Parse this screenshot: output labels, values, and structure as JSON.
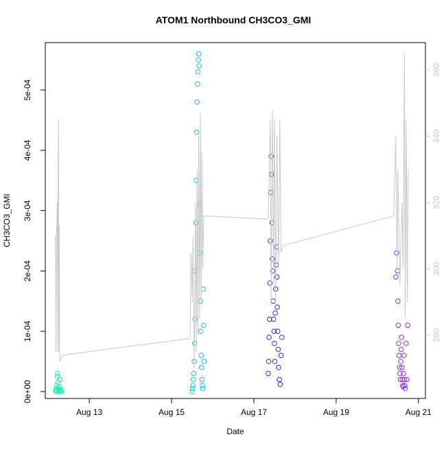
{
  "chart_data": {
    "type": "scatter",
    "title": "ATOM1 Northbound CH3CO3_GMI",
    "xlabel": "Date",
    "ylabel": "CH3CO3_GMI",
    "xlim": [
      11.93,
      21.17
    ],
    "xticks": [
      {
        "value": 13,
        "label": "Aug 13"
      },
      {
        "value": 15,
        "label": "Aug 15"
      },
      {
        "value": 17,
        "label": "Aug 17"
      },
      {
        "value": 19,
        "label": "Aug 19"
      },
      {
        "value": 21,
        "label": "Aug 21"
      }
    ],
    "ylim": [
      -1.14e-05,
      0.0005786
    ],
    "yticks": [
      {
        "value": 0,
        "label": "0e+00"
      },
      {
        "value": 0.0001,
        "label": "1e-04"
      },
      {
        "value": 0.0002,
        "label": "2e-04"
      },
      {
        "value": 0.0003,
        "label": "3e-04"
      },
      {
        "value": 0.0004,
        "label": "4e-04"
      },
      {
        "value": 0.0005,
        "label": "5e-04"
      }
    ],
    "y2lim": [
      260.9,
      368.3
    ],
    "y2ticks": [
      280,
      300,
      320,
      340,
      360
    ],
    "y2_color": "#c8c8c8",
    "series": [
      {
        "color": "#1ee8b0",
        "x": [
          12.18,
          12.19,
          12.2,
          12.21,
          12.22,
          12.23,
          12.24,
          12.25,
          12.26,
          12.27,
          12.28,
          12.29,
          12.3,
          12.31,
          12.33
        ],
        "values": [
          0,
          2e-06,
          5e-06,
          1e-05,
          2.5e-05,
          3e-05,
          1.5e-05,
          5e-06,
          0,
          1e-06,
          8e-06,
          2e-05,
          3e-06,
          1e-06,
          0
        ]
      },
      {
        "color": "#22b8ee",
        "x": [
          15.5,
          15.51,
          15.52,
          15.53,
          15.54,
          15.55,
          15.56,
          15.57,
          15.58,
          15.59,
          15.6,
          15.61,
          15.62,
          15.63,
          15.64,
          15.65,
          15.66,
          15.67,
          15.68,
          15.69,
          15.7,
          15.71,
          15.72,
          15.73,
          15.74,
          15.75,
          15.76,
          15.77,
          15.78,
          15.79
        ],
        "values": [
          0,
          5e-06,
          1e-05,
          2e-05,
          3e-05,
          5e-05,
          8e-05,
          0.00012,
          0.0002,
          0.00028,
          0.00035,
          0.00043,
          0.00048,
          0.00051,
          0.00053,
          0.00055,
          0.00056,
          0.00054,
          0.00031,
          0.00023,
          0.00015,
          0.0001,
          6e-05,
          4e-05,
          2e-05,
          1e-05,
          5e-06,
          0.00017,
          0.00011,
          5e-05
        ]
      },
      {
        "color": "#1f35e0",
        "x": [
          17.35,
          17.36,
          17.37,
          17.38,
          17.39,
          17.4,
          17.41,
          17.42,
          17.43,
          17.44,
          17.45,
          17.46,
          17.47,
          17.48,
          17.49,
          17.5,
          17.51,
          17.52,
          17.53,
          17.54,
          17.55,
          17.56,
          17.57,
          17.58,
          17.59,
          17.6,
          17.62,
          17.64,
          17.66,
          17.68
        ],
        "values": [
          3e-05,
          5e-05,
          9e-05,
          0.00012,
          0.00018,
          0.00025,
          0.00033,
          0.00039,
          0.00036,
          0.00028,
          0.00022,
          0.0002,
          0.00015,
          0.00012,
          0.0001,
          8e-05,
          5e-05,
          0.00013,
          0.00017,
          0.00021,
          0.00024,
          0.00019,
          0.00014,
          0.0001,
          7e-05,
          4e-05,
          2e-05,
          1.2e-05,
          6e-05,
          9e-05
        ]
      },
      {
        "color": "#8a2be8",
        "x": [
          20.45,
          20.47,
          20.49,
          20.5,
          20.51,
          20.52,
          20.53,
          20.54,
          20.55,
          20.56,
          20.57,
          20.58,
          20.59,
          20.6,
          20.61,
          20.62,
          20.63,
          20.64,
          20.65,
          20.66,
          20.67,
          20.68,
          20.7,
          20.72,
          20.74
        ],
        "values": [
          0.00019,
          0.00023,
          0.0002,
          0.00015,
          0.00011,
          8e-05,
          6e-05,
          4e-05,
          3e-05,
          2e-05,
          5e-05,
          7e-05,
          9e-05,
          4e-05,
          2e-05,
          1e-05,
          8e-06,
          3e-05,
          6e-05,
          2e-05,
          1e-05,
          5e-06,
          8e-05,
          2e-05,
          0.00011
        ]
      },
      {
        "color": "#c8c8c8",
        "axis": "y2",
        "line": true,
        "x": [
          12.17,
          12.18,
          12.19,
          12.2,
          12.21,
          12.22,
          12.23,
          12.24,
          12.25,
          12.26,
          12.27,
          12.28,
          12.35,
          15.45,
          15.47,
          15.5,
          15.52,
          15.55,
          15.58,
          15.6,
          15.62,
          15.64,
          15.66,
          15.68,
          15.7,
          15.72,
          15.74,
          15.76,
          15.78,
          17.35,
          17.4,
          17.42,
          17.45,
          17.48,
          17.5,
          17.53,
          17.56,
          17.6,
          17.63,
          17.66,
          17.7,
          20.4,
          20.45,
          20.48,
          20.5,
          20.55,
          20.6,
          20.63,
          20.66,
          20.68,
          20.7,
          20.73,
          20.75
        ],
        "values": [
          310,
          305,
          275,
          310,
          313,
          320,
          275,
          330,
          345,
          275,
          313,
          272,
          274,
          279,
          305,
          290,
          310,
          270,
          320,
          275,
          330,
          280,
          340,
          285,
          347,
          290,
          335,
          300,
          316,
          315,
          345,
          290,
          348,
          295,
          345,
          290,
          340,
          300,
          345,
          305,
          307,
          316,
          340,
          300,
          330,
          295,
          320,
          300,
          365,
          285,
          345,
          290,
          330
        ]
      }
    ]
  }
}
